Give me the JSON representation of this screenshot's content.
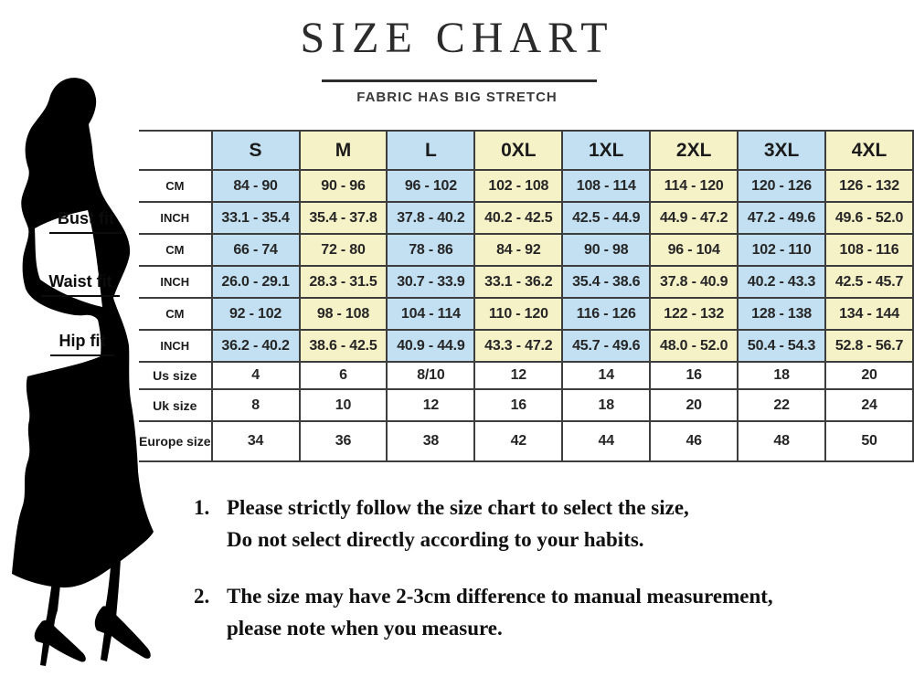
{
  "page": {
    "title": "SIZE CHART",
    "subtitle": "FABRIC HAS BIG STRETCH"
  },
  "colors": {
    "column_blue": "#c2e0f1",
    "column_yellow": "#f6f2c8",
    "grid_border": "#3d3d3d"
  },
  "side_labels": {
    "bust": "Bust fit",
    "waist": "Waist fit",
    "hip": "Hip fit"
  },
  "chart_data": {
    "type": "table",
    "title": "SIZE CHART",
    "subtitle": "FABRIC HAS BIG STRETCH",
    "columns": [
      "S",
      "M",
      "L",
      "0XL",
      "1XL",
      "2XL",
      "3XL",
      "4XL"
    ],
    "rows": [
      {
        "group": "Bust fit",
        "label": "CM",
        "shaded": true,
        "values": [
          "84 - 90",
          "90 - 96",
          "96 - 102",
          "102 - 108",
          "108 - 114",
          "114 - 120",
          "120 - 126",
          "126 - 132"
        ]
      },
      {
        "group": "Bust fit",
        "label": "INCH",
        "shaded": true,
        "values": [
          "33.1 - 35.4",
          "35.4 - 37.8",
          "37.8 - 40.2",
          "40.2 - 42.5",
          "42.5 - 44.9",
          "44.9 - 47.2",
          "47.2 - 49.6",
          "49.6 - 52.0"
        ]
      },
      {
        "group": "Waist fit",
        "label": "CM",
        "shaded": true,
        "values": [
          "66 - 74",
          "72 - 80",
          "78 - 86",
          "84 - 92",
          "90 - 98",
          "96 - 104",
          "102 - 110",
          "108 - 116"
        ]
      },
      {
        "group": "Waist fit",
        "label": "INCH",
        "shaded": true,
        "values": [
          "26.0 - 29.1",
          "28.3 - 31.5",
          "30.7 - 33.9",
          "33.1 - 36.2",
          "35.4 - 38.6",
          "37.8 - 40.9",
          "40.2 - 43.3",
          "42.5 - 45.7"
        ]
      },
      {
        "group": "Hip fit",
        "label": "CM",
        "shaded": true,
        "values": [
          "92 - 102",
          "98 - 108",
          "104 - 114",
          "110 - 120",
          "116 - 126",
          "122 - 132",
          "128 - 138",
          "134 - 144"
        ]
      },
      {
        "group": "Hip fit",
        "label": "INCH",
        "shaded": true,
        "values": [
          "36.2 - 40.2",
          "38.6 - 42.5",
          "40.9 - 44.9",
          "43.3 - 47.2",
          "45.7 - 49.6",
          "48.0 - 52.0",
          "50.4 - 54.3",
          "52.8 - 56.7"
        ]
      },
      {
        "group": "",
        "label": "Us size",
        "shaded": false,
        "values": [
          "4",
          "6",
          "8/10",
          "12",
          "14",
          "16",
          "18",
          "20"
        ]
      },
      {
        "group": "",
        "label": "Uk size",
        "shaded": false,
        "values": [
          "8",
          "10",
          "12",
          "16",
          "18",
          "20",
          "22",
          "24"
        ]
      },
      {
        "group": "",
        "label": "Europe size",
        "shaded": false,
        "values": [
          "34",
          "36",
          "38",
          "42",
          "44",
          "46",
          "48",
          "50"
        ]
      }
    ],
    "legend_position": "none",
    "grid": true
  },
  "notes": {
    "items": [
      {
        "num": "1.",
        "line1": "Please strictly follow the size chart to select the size,",
        "line2": "Do not select directly according to your habits."
      },
      {
        "num": "2.",
        "line1": "The size may have 2-3cm difference  to manual measurement,",
        "line2": "please note when you measure."
      }
    ]
  }
}
